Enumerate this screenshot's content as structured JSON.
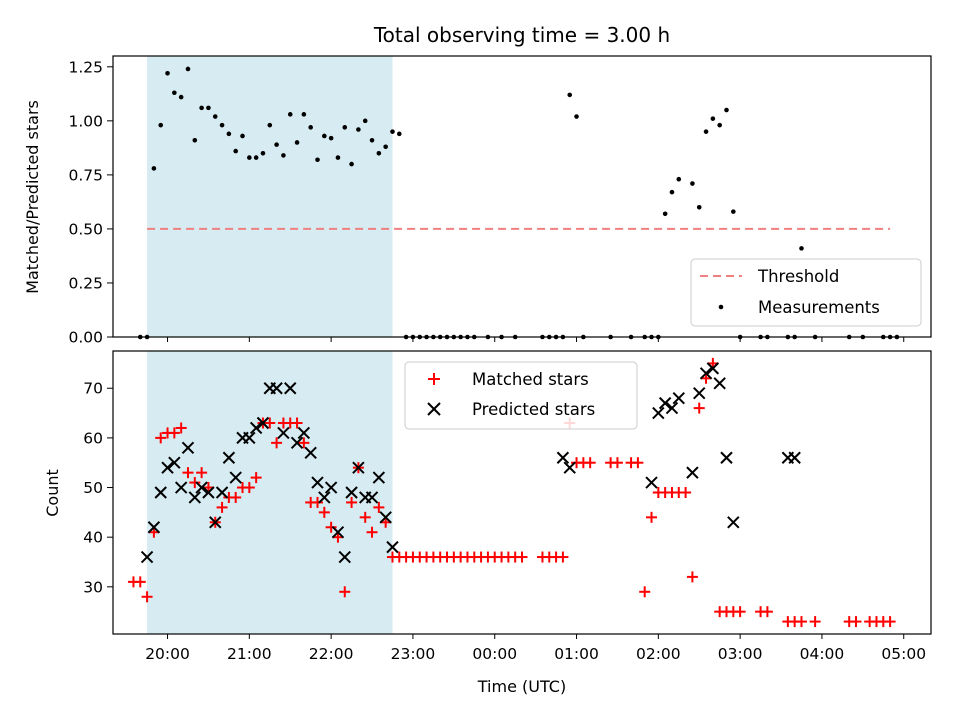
{
  "chart_data": [
    {
      "type": "scatter",
      "title": "Total observing time = 3.00 h",
      "xlabel": "",
      "ylabel": "Matched/Predicted stars",
      "xlim": [
        "19:20",
        "05:20"
      ],
      "ylim": [
        0,
        1.3
      ],
      "yticks": [
        0.0,
        0.25,
        0.5,
        0.75,
        1.0,
        1.25
      ],
      "ytick_labels": [
        "0.00",
        "0.25",
        "0.50",
        "0.75",
        "1.00",
        "1.25"
      ],
      "shaded_span": {
        "x0": "19:45",
        "x1": "22:45",
        "color": "#add8e6"
      },
      "legend_position": "bottom-right",
      "series": [
        {
          "name": "Threshold",
          "style": "dashed-line",
          "color": "#f08080",
          "x": [
            "19:45",
            "04:50"
          ],
          "y": [
            0.5,
            0.5
          ]
        },
        {
          "name": "Measurements",
          "style": "dots",
          "color": "#000000",
          "x": [
            "19:40",
            "19:45",
            "19:50",
            "19:55",
            "20:00",
            "20:05",
            "20:10",
            "20:15",
            "20:20",
            "20:25",
            "20:30",
            "20:35",
            "20:40",
            "20:45",
            "20:50",
            "20:55",
            "21:00",
            "21:05",
            "21:10",
            "21:15",
            "21:20",
            "21:25",
            "21:30",
            "21:35",
            "21:40",
            "21:45",
            "21:50",
            "21:55",
            "22:00",
            "22:05",
            "22:10",
            "22:15",
            "22:20",
            "22:25",
            "22:30",
            "22:35",
            "22:40",
            "22:45",
            "22:50",
            "22:55",
            "23:00",
            "23:05",
            "23:10",
            "23:15",
            "23:20",
            "23:25",
            "23:30",
            "23:35",
            "23:40",
            "23:45",
            "23:55",
            "00:05",
            "00:15",
            "00:35",
            "00:40",
            "00:45",
            "00:50",
            "00:55",
            "01:00",
            "01:05",
            "01:25",
            "01:40",
            "01:50",
            "01:55",
            "02:00",
            "02:05",
            "02:10",
            "02:15",
            "02:25",
            "02:30",
            "02:35",
            "02:40",
            "02:45",
            "02:50",
            "02:55",
            "03:00",
            "03:15",
            "03:20",
            "03:35",
            "03:40",
            "03:45",
            "03:55",
            "04:20",
            "04:30",
            "04:45",
            "04:50",
            "04:55"
          ],
          "y": [
            0,
            0,
            0.78,
            0.98,
            1.22,
            1.13,
            1.11,
            1.24,
            0.91,
            1.06,
            1.06,
            1.02,
            0.98,
            0.94,
            0.86,
            0.93,
            0.83,
            0.83,
            0.85,
            0.98,
            0.89,
            0.84,
            1.03,
            0.9,
            1.03,
            0.97,
            0.82,
            0.93,
            0.92,
            0.83,
            0.97,
            0.8,
            0.96,
            1.0,
            0.91,
            0.85,
            0.88,
            0.95,
            0.94,
            0,
            0,
            0,
            0,
            0,
            0,
            0,
            0,
            0,
            0,
            0,
            0,
            0,
            0,
            0,
            0,
            0,
            0,
            1.12,
            1.02,
            0,
            0,
            0,
            0,
            0,
            0,
            0.57,
            0.67,
            0.73,
            0.71,
            0.6,
            0.95,
            1.01,
            0.98,
            1.05,
            0.58,
            0,
            0,
            0,
            0,
            0,
            0.41,
            0,
            0,
            0,
            0,
            0,
            0
          ]
        }
      ]
    },
    {
      "type": "scatter",
      "title": "",
      "xlabel": "Time (UTC)",
      "ylabel": "Count",
      "xlim": [
        "19:20",
        "05:20"
      ],
      "ylim": [
        20.5,
        77.5
      ],
      "yticks": [
        30,
        40,
        50,
        60,
        70
      ],
      "ytick_labels": [
        "30",
        "40",
        "50",
        "60",
        "70"
      ],
      "xticks": [
        "20:00",
        "21:00",
        "22:00",
        "23:00",
        "00:00",
        "01:00",
        "02:00",
        "03:00",
        "04:00",
        "05:00"
      ],
      "shaded_span": {
        "x0": "19:45",
        "x1": "22:45",
        "color": "#add8e6"
      },
      "legend_position": "top-center",
      "series": [
        {
          "name": "Matched stars",
          "marker": "plus",
          "color": "#ff0000",
          "x": [
            "19:35",
            "19:40",
            "19:45",
            "19:50",
            "19:55",
            "20:00",
            "20:05",
            "20:10",
            "20:15",
            "20:20",
            "20:25",
            "20:30",
            "20:35",
            "20:40",
            "20:45",
            "20:50",
            "20:55",
            "21:00",
            "21:05",
            "21:10",
            "21:15",
            "21:20",
            "21:25",
            "21:30",
            "21:35",
            "21:40",
            "21:45",
            "21:50",
            "21:55",
            "22:00",
            "22:05",
            "22:10",
            "22:15",
            "22:20",
            "22:25",
            "22:30",
            "22:35",
            "22:40",
            "22:45",
            "22:50",
            "22:55",
            "23:00",
            "23:05",
            "23:10",
            "23:15",
            "23:20",
            "23:25",
            "23:30",
            "23:35",
            "23:40",
            "23:45",
            "23:50",
            "23:55",
            "00:00",
            "00:05",
            "00:10",
            "00:15",
            "00:20",
            "00:35",
            "00:40",
            "00:45",
            "00:50",
            "00:55",
            "01:00",
            "01:05",
            "01:10",
            "01:25",
            "01:30",
            "01:40",
            "01:45",
            "01:50",
            "01:55",
            "02:00",
            "02:05",
            "02:10",
            "02:15",
            "02:20",
            "02:25",
            "02:30",
            "02:35",
            "02:40",
            "02:45",
            "02:50",
            "02:55",
            "03:00",
            "03:15",
            "03:20",
            "03:35",
            "03:40",
            "03:45",
            "03:55",
            "04:20",
            "04:25",
            "04:35",
            "04:40",
            "04:45",
            "04:50"
          ],
          "y": [
            31,
            31,
            28,
            41,
            60,
            61,
            61,
            62,
            53,
            51,
            53,
            50,
            43,
            46,
            48,
            48,
            50,
            50,
            52,
            63,
            63,
            59,
            63,
            63,
            63,
            59,
            47,
            47,
            45,
            42,
            40,
            29,
            47,
            54,
            44,
            41,
            46,
            43,
            36,
            36,
            36,
            36,
            36,
            36,
            36,
            36,
            36,
            36,
            36,
            36,
            36,
            36,
            36,
            36,
            36,
            36,
            36,
            36,
            36,
            36,
            36,
            36,
            63,
            55,
            55,
            55,
            55,
            55,
            55,
            55,
            29,
            44,
            49,
            49,
            49,
            49,
            49,
            32,
            66,
            72,
            75,
            25,
            25,
            25,
            25,
            25,
            25,
            23,
            23,
            23,
            23,
            23,
            23,
            23,
            23,
            23,
            23
          ]
        },
        {
          "name": "Predicted stars",
          "marker": "x",
          "color": "#000000",
          "x": [
            "19:45",
            "19:50",
            "19:55",
            "20:00",
            "20:05",
            "20:10",
            "20:15",
            "20:20",
            "20:25",
            "20:30",
            "20:35",
            "20:40",
            "20:45",
            "20:50",
            "20:55",
            "21:00",
            "21:05",
            "21:10",
            "21:15",
            "21:20",
            "21:25",
            "21:30",
            "21:35",
            "21:40",
            "21:45",
            "21:50",
            "21:55",
            "22:00",
            "22:05",
            "22:10",
            "22:15",
            "22:20",
            "22:25",
            "22:30",
            "22:35",
            "22:40",
            "22:45",
            "00:50",
            "00:55",
            "01:55",
            "02:00",
            "02:05",
            "02:10",
            "02:15",
            "02:25",
            "02:30",
            "02:35",
            "02:40",
            "02:45",
            "02:50",
            "02:55",
            "03:35",
            "03:40"
          ],
          "y": [
            36,
            42,
            49,
            54,
            55,
            50,
            58,
            48,
            50,
            49,
            43,
            49,
            56,
            52,
            60,
            60,
            62,
            63,
            70,
            70,
            61,
            70,
            59,
            61,
            57,
            51,
            48,
            50,
            41,
            36,
            49,
            54,
            48,
            48,
            52,
            44,
            38,
            56,
            54,
            51,
            65,
            67,
            66,
            68,
            53,
            69,
            73,
            74,
            71,
            56,
            43,
            56,
            56
          ]
        }
      ]
    }
  ]
}
